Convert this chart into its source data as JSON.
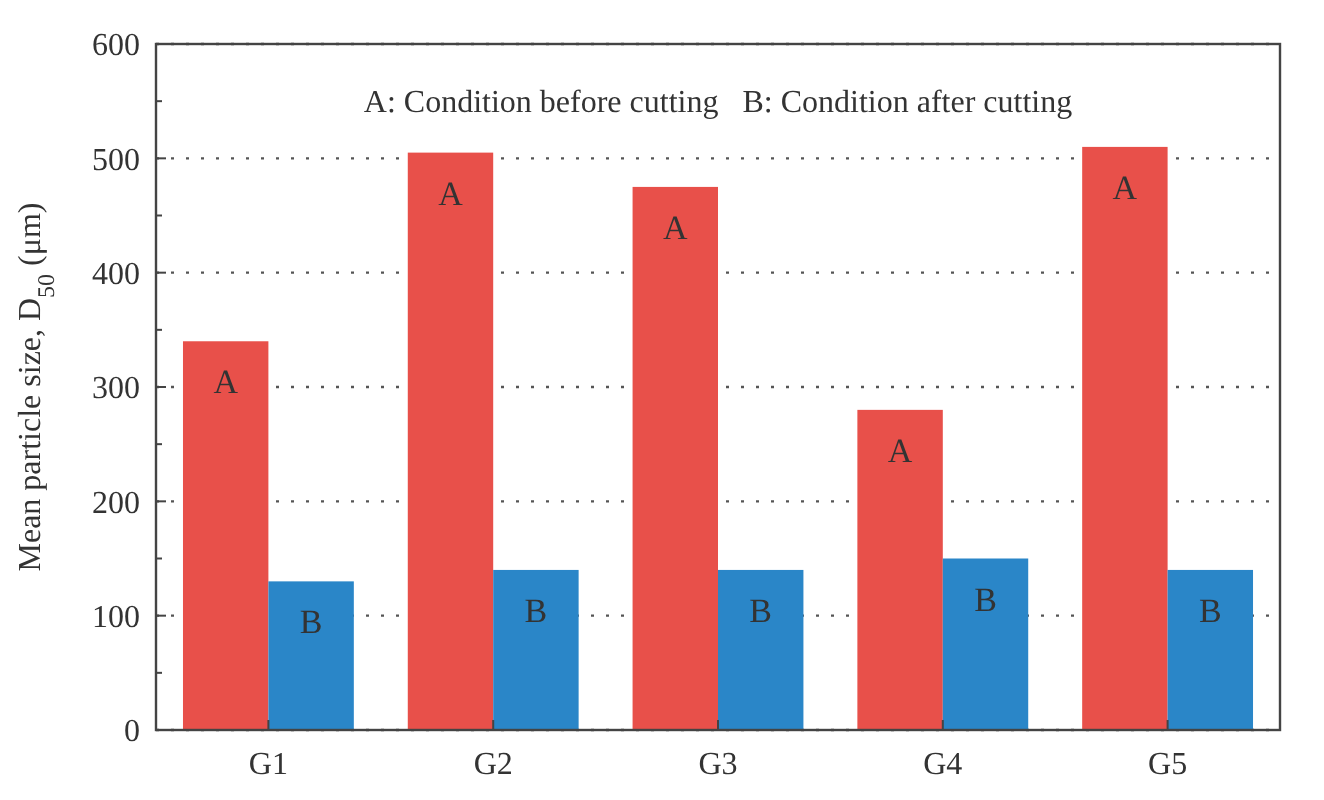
{
  "chart_data": {
    "type": "bar",
    "ylabel": "Mean particle size, D$_{50}$ (μm)",
    "categories": [
      "G1",
      "G2",
      "G3",
      "G4",
      "G5"
    ],
    "series": [
      {
        "name": "A",
        "color": "#e8504a",
        "values": [
          340,
          505,
          475,
          280,
          510
        ]
      },
      {
        "name": "B",
        "color": "#2a86c8",
        "values": [
          130,
          140,
          140,
          150,
          140
        ]
      }
    ],
    "ylim": [
      0,
      600
    ],
    "yticks": [
      0,
      100,
      200,
      300,
      400,
      500,
      600
    ],
    "grid": "y",
    "annotations": [
      "A: Condition before cutting   B: Condition after cutting"
    ]
  }
}
